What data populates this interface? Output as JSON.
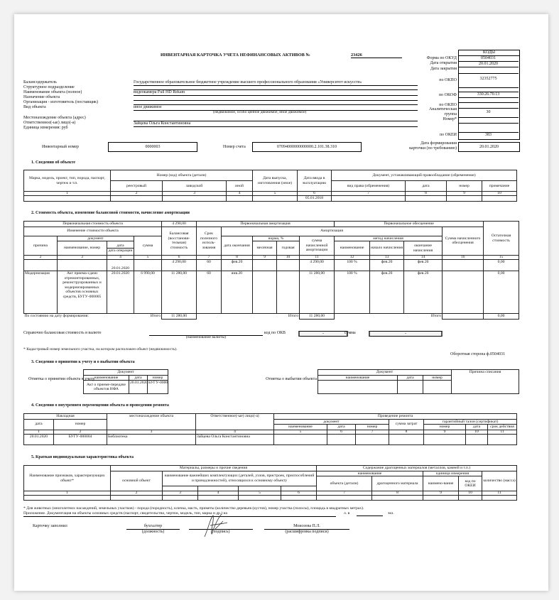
{
  "title": "ИНВЕНТАРНАЯ КАРТОЧКА УЧЕТА НЕФИНАНСОВЫХ АКТИВОВ №",
  "card_number": "23426",
  "codes": {
    "header": "КОДЫ",
    "rows": [
      {
        "label": "Форма по ОКУД",
        "value": "0504031"
      },
      {
        "label": "Дата открытия",
        "value": "20.01.2020"
      },
      {
        "label": "Дата закрытия",
        "value": ""
      },
      {
        "label": "по ОКПО",
        "value": "32352775"
      },
      {
        "label": "по ОКОФ",
        "value": "330.26.70.13"
      },
      {
        "label": "по ОКПО",
        "value": ""
      },
      {
        "label": "Аналитическая",
        "label2": "группа",
        "value": "30"
      },
      {
        "label": "Номер*",
        "value": ""
      },
      {
        "label": "по ОКЕИ",
        "value": "383"
      }
    ]
  },
  "fields": {
    "holder": {
      "label": "Балансодержатель",
      "value": "Государственное образовательное бюджетное учреждение высшего профессионального образования «Университет искусств»"
    },
    "division": {
      "label": "Структурное подразделение",
      "value": ""
    },
    "name": {
      "label": "Наименование объекта (полное)",
      "value": "видеокамера Full HD Rekam"
    },
    "purpose": {
      "label": "Назначение объекта",
      "value": ""
    },
    "maker": {
      "label": "Организация - изготовитель (поставщик)",
      "value": ""
    },
    "kind": {
      "label": "Вид объекта",
      "value": "иное движимое",
      "hint": "(недвижимое, особо ценное движимое, иное движимое)"
    },
    "location": {
      "label": "Местонахождение объекта (адрес)",
      "value": ""
    },
    "responsible": {
      "label": "Ответственное(-ые) лицо(-а)",
      "value": "Зайцева Ольга Константиновна"
    },
    "unit": {
      "label": "Единица измерения: руб"
    }
  },
  "inventory": {
    "label": "Инвентарный номер",
    "value": "0000003",
    "account_label": "Номер счета",
    "account": "07094000000000000.2.101.38.310",
    "date_label": "Дата формирования",
    "date_label2": "карточки (по требованию)",
    "date": "20.01.2020"
  },
  "s1": {
    "title": "1. Сведения об объекте",
    "h": {
      "brand": "Марка, модель, проект, тип, порода, паспорт, чертеж и т.п.",
      "number": "Номер (код) объекта (детали)",
      "reg": "реестровый",
      "factory": "заводской",
      "other": "иной",
      "release": "Дата выпуска, изготовления (иное)",
      "commission": "Дата ввода в эксплуатацию",
      "doc": "Документ, устанавливающий правообладание (обременение)",
      "right": "вид права (обременения)",
      "date": "дата",
      "num": "номер",
      "note": "примечание"
    },
    "nums": [
      "1",
      "2",
      "3",
      "4",
      "5",
      "6",
      "7",
      "8",
      "9",
      "10"
    ],
    "row": [
      "",
      "",
      "",
      "",
      "",
      "05.01.2018",
      "",
      "",
      "",
      ""
    ]
  },
  "s2": {
    "title": "2. Стоимость объекта, изменение балансовой стоимости, начисление амортизации",
    "h": {
      "initial": "Первоначальная стоимость объекта",
      "initial_value": "4 290,00",
      "init_amort": "Первоначальная амортизация",
      "init_impair": "Первоначальное обесценение",
      "residual": "Остаточная стоимость",
      "change": "Изменение стоимости объекта",
      "balance": "Балансовая (восстанови-тельная) стоимость",
      "term": "Срок полезного исполь-зования",
      "amort": "Амортизация",
      "impair_sum": "Сумма начисленного обесценения",
      "reason": "причина",
      "document": "документ",
      "sum": "сумма",
      "end_date": "дата окончания",
      "norm": "норма, %",
      "amort_sum": "сумма начисленной амортизации",
      "method": "метод начисления",
      "doc_name": "наименование, номер",
      "doc_date": "дата",
      "op_date": "дата операции",
      "monthly": "месячная",
      "yearly": "годовая",
      "m_name": "наименование",
      "m_start": "начало начисления",
      "m_end": "окончание начисления"
    },
    "nums": [
      "2",
      "3",
      "4",
      "5",
      "6",
      "7",
      "8",
      "9",
      "10",
      "11",
      "12",
      "13",
      "14",
      "16",
      "15"
    ],
    "rows": [
      [
        "",
        "",
        "20.01.2020",
        "",
        "4 290,00",
        "60",
        "фев.20",
        "",
        "",
        "4 290,00",
        "100 %",
        "фев.20",
        "фев.20",
        "",
        "0,00"
      ],
      [
        "Модернизация",
        "Акт приема-сдачи отремонтированных, реконструированных и модернизированных объектов основных средств, БУГУ-000005",
        "20.01.2020",
        "6 990,00",
        "11 280,00",
        "60",
        "янв.20",
        "",
        "",
        "11 280,00",
        "100 %",
        "фев.20",
        "фев.20",
        "",
        "0,00"
      ]
    ],
    "as_of": "По состоянию на дату формирования:",
    "total_label": "Итого",
    "total_balance": "11 280,00",
    "total_amort": "11 280,00",
    "total_impair": "",
    "total_residual": "0,00",
    "currency_label": "Справочно балансовая стоимость в валюте",
    "currency_hint": "(наименование валюты)",
    "okv_label": "код по ОКВ",
    "okv": "-",
    "sum_label": "сумма",
    "sum": "-"
  },
  "footnote1": "* Кадастровый номер земельного участка, на котором расположен объект (недвижимость).",
  "reverse": "Оборотная сторона ф.0504031",
  "s3": {
    "title": "3. Сведения о принятии к учету и о выбытии объекта",
    "accept_label": "Отметка о принятии объекта к учету",
    "dispose_label": "Отметка о выбытии объекта",
    "document": "Документ",
    "name": "наименование",
    "date": "дата",
    "num": "номер",
    "reason": "Причина списания",
    "accept": {
      "name": "Акт о приеме-передаче объектов НФА",
      "date": "20.01.2020",
      "num": "БУГУ-000004"
    }
  },
  "s4": {
    "title": "4. Сведения о внутреннем перемещении объекта и проведении ремонта",
    "h": {
      "invoice": "Накладная",
      "date": "дата",
      "num": "номер",
      "location": "местонахождение объекта",
      "responsible": "Ответственное(-ые) лицо(-а)",
      "repair": "Проведение ремонта",
      "document": "документ",
      "name": "наименование",
      "cost": "сумма затрат",
      "warranty": "гарантийный талон (сертификат)",
      "validity": "срок действия"
    },
    "nums": [
      "1",
      "2",
      "3",
      "4",
      "5",
      "6",
      "7",
      "8",
      "9",
      "10",
      "11"
    ],
    "row": [
      "20.01.2020",
      "БУГУ-000004",
      "Библиотека",
      "Зайцева Ольга Константиновна",
      "",
      "",
      "",
      "",
      "",
      "",
      ""
    ]
  },
  "s5": {
    "title": "5. Краткая индивидуальная характеристика объекта",
    "h": {
      "features": "Наименование признаков, характеризующих объект*",
      "materials": "Материалы, размеры и прочие сведения",
      "precious": "Содержание драгоценных материалов (металлов, камней и т.п.)",
      "main": "основной объект",
      "components": "наименование важнейших комплектующих (деталей, узлов, пристроек, приспособлений и принадлежностей), относящихся к основному объекту",
      "name": "наименование",
      "unit": "единица измерения",
      "qty": "количество (масса)",
      "obj": "объекта (детали)",
      "mat": "драгоценного материала",
      "uname": "наимено-вание",
      "okei": "код по ОКЕИ"
    },
    "nums": [
      "1",
      "2",
      "3",
      "4",
      "5",
      "6",
      "7",
      "8",
      "9",
      "10",
      "11"
    ]
  },
  "footnote2": "* Для животных (многолетних насаждений, земельных участков) - порода (породность), кличка, масть, приметы (количество деревьев (кустов), номер участка (полосы), площадь в квадратных метрах).",
  "appendix": "Приложение. Документация на объекты основных средств (паспорт, свидетельство, чертеж, модель, тип, марка и др.) на",
  "appendix_sheets": "л. в",
  "appendix_copies": "экз.",
  "sign": {
    "filled": "Карточку заполнил",
    "position": "бухгалтер",
    "position_hint": "(должность)",
    "signature_hint": "(подпись)",
    "name": "Моисеева П.Л.",
    "name_hint": "(расшифровка подписи)"
  }
}
